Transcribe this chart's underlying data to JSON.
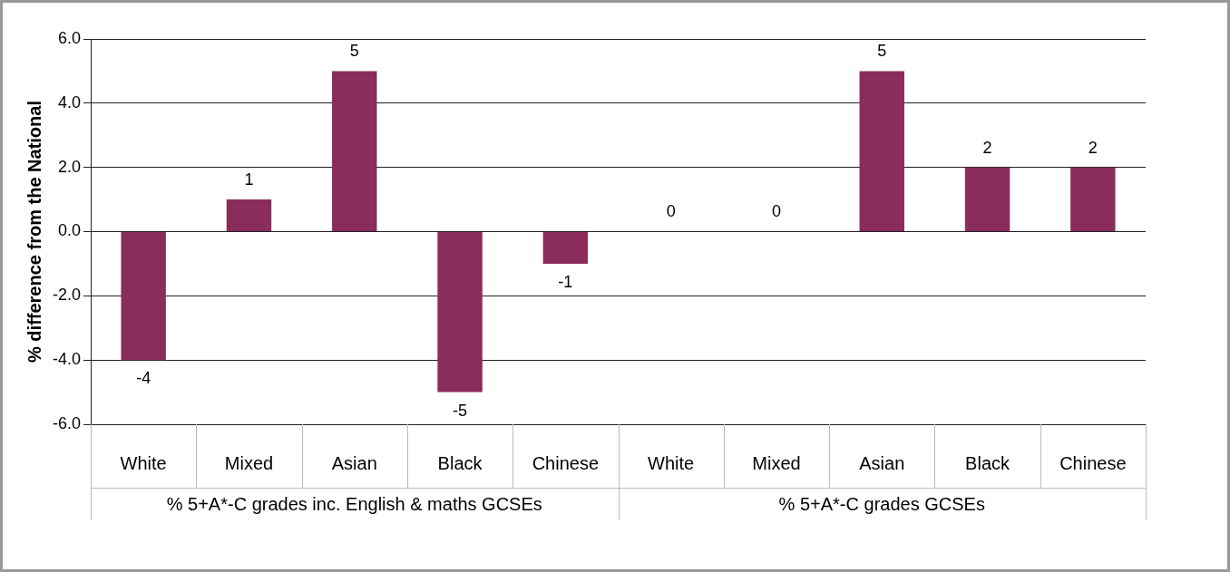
{
  "chart_data": {
    "type": "bar",
    "ylabel": "% difference from the National",
    "categories": [
      "White",
      "Mixed",
      "Asian",
      "Black",
      "Chinese",
      "White",
      "Mixed",
      "Asian",
      "Black",
      "Chinese"
    ],
    "annotations": [
      "% 5+A*-C grades inc. English & maths GCSEs",
      "% 5+A*-C grades GCSEs"
    ],
    "values": [
      -4,
      1,
      5,
      -5,
      -1,
      0,
      0,
      5,
      2,
      2
    ],
    "color": "#8a2c5c",
    "ylim": [
      -6,
      6
    ],
    "yticks": [
      {
        "value": -6,
        "label": "-6.0"
      },
      {
        "value": -4,
        "label": "-4.0"
      },
      {
        "value": -2,
        "label": "-2.0"
      },
      {
        "value": 0,
        "label": "0.0"
      },
      {
        "value": 2,
        "label": "2.0"
      },
      {
        "value": 4,
        "label": "4.0"
      },
      {
        "value": 6,
        "label": "6.0"
      }
    ],
    "grid": "y",
    "data_labels": true,
    "legend": false
  }
}
